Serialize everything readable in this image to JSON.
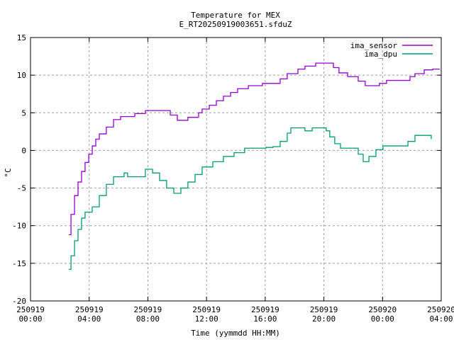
{
  "chart_data": {
    "type": "line",
    "title": "Temperature for MEX",
    "subtitle": "E_RT20250919003651.sfduZ",
    "xlabel": "Time (yymmdd HH:MM)",
    "ylabel": "°C",
    "xlim_hours": [
      0,
      28
    ],
    "ylim": [
      -20,
      15
    ],
    "grid": true,
    "legend_position": "top-right",
    "x_unit": "hours since 250919 00:00",
    "yticks": [
      -20,
      -15,
      -10,
      -5,
      0,
      5,
      10,
      15
    ],
    "xticks": [
      {
        "h": 0,
        "date": "250919",
        "time": "00:00"
      },
      {
        "h": 4,
        "date": "250919",
        "time": "04:00"
      },
      {
        "h": 8,
        "date": "250919",
        "time": "08:00"
      },
      {
        "h": 12,
        "date": "250919",
        "time": "12:00"
      },
      {
        "h": 16,
        "date": "250919",
        "time": "16:00"
      },
      {
        "h": 20,
        "date": "250919",
        "time": "20:00"
      },
      {
        "h": 24,
        "date": "250920",
        "time": "00:00"
      },
      {
        "h": 28,
        "date": "250920",
        "time": "04:00"
      }
    ],
    "series": [
      {
        "name": "ima_sensor",
        "color": "#9400d3",
        "x": [
          2.61,
          2.76,
          3.0,
          3.24,
          3.48,
          3.72,
          3.97,
          4.21,
          4.45,
          4.69,
          5.17,
          5.66,
          6.14,
          6.53,
          7.11,
          7.83,
          9.04,
          9.53,
          10.01,
          10.49,
          10.73,
          11.46,
          11.7,
          12.19,
          12.67,
          13.15,
          13.64,
          14.12,
          14.85,
          15.81,
          17.02,
          17.5,
          18.23,
          18.71,
          19.44,
          20.16,
          20.65,
          21.03,
          21.62,
          22.34,
          22.82,
          23.31,
          23.79,
          24.27,
          25.48,
          25.87,
          26.21,
          26.84,
          27.42,
          27.9
        ],
        "y": [
          -11.2,
          -8.5,
          -6,
          -4.2,
          -2.8,
          -1.6,
          -0.5,
          0.6,
          1.5,
          2.2,
          3.1,
          4.1,
          4.5,
          4.5,
          4.9,
          5.3,
          5.3,
          4.7,
          4.0,
          4.0,
          4.4,
          5.0,
          5.5,
          6.0,
          6.6,
          7.2,
          7.7,
          8.2,
          8.6,
          8.9,
          9.5,
          10.2,
          10.8,
          11.2,
          11.6,
          11.6,
          11.0,
          10.3,
          9.8,
          9.2,
          8.6,
          8.6,
          8.9,
          9.3,
          9.3,
          9.8,
          10.2,
          10.7,
          10.8,
          10.8
        ]
      },
      {
        "name": "ima_dpu",
        "color": "#009e73",
        "x": [
          2.61,
          2.76,
          3.0,
          3.24,
          3.48,
          3.72,
          4.21,
          4.69,
          5.17,
          5.66,
          6.38,
          6.62,
          7.35,
          7.83,
          8.32,
          8.8,
          9.28,
          9.77,
          10.25,
          10.73,
          11.22,
          11.7,
          12.43,
          13.15,
          13.88,
          14.6,
          16.05,
          16.54,
          17.02,
          17.5,
          17.75,
          18.23,
          18.71,
          19.2,
          19.68,
          20.16,
          20.4,
          20.74,
          21.13,
          21.86,
          22.34,
          22.68,
          23.07,
          23.55,
          24.03,
          25.24,
          25.73,
          26.21,
          27.18,
          27.32
        ],
        "y": [
          -15.8,
          -14,
          -12,
          -10.5,
          -9,
          -8.2,
          -7.5,
          -6,
          -4.5,
          -3.5,
          -3.0,
          -3.5,
          -3.5,
          -2.5,
          -3.0,
          -4.0,
          -5.0,
          -5.7,
          -5.0,
          -4.2,
          -3.2,
          -2.2,
          -1.5,
          -0.8,
          -0.3,
          0.3,
          0.4,
          0.5,
          1.2,
          2.3,
          3.0,
          3.0,
          2.6,
          3.0,
          3.0,
          2.6,
          1.8,
          0.9,
          0.3,
          0.3,
          -0.5,
          -1.5,
          -0.8,
          0.1,
          0.6,
          0.6,
          1.2,
          2.0,
          2.0,
          1.5
        ]
      }
    ]
  }
}
